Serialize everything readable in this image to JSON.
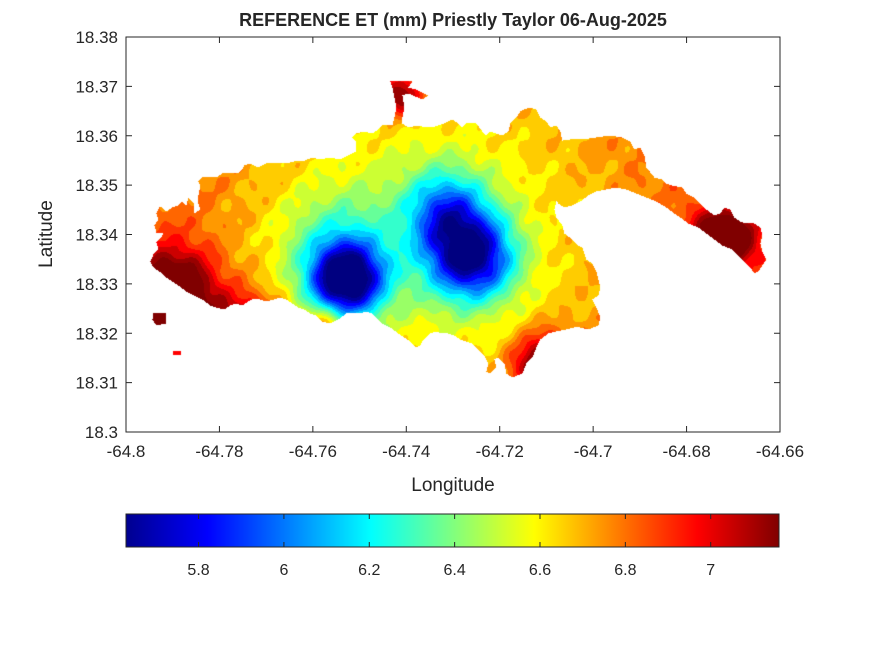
{
  "chart_data": {
    "type": "heatmap",
    "title": "REFERENCE ET (mm) Priestly Taylor 06-Aug-2025",
    "xlabel": "Longitude",
    "ylabel": "Latitude",
    "xlim": [
      -64.8,
      -64.66
    ],
    "ylim": [
      18.3,
      18.38
    ],
    "xticks": [
      "-64.8",
      "-64.78",
      "-64.76",
      "-64.74",
      "-64.72",
      "-64.7",
      "-64.68",
      "-64.66"
    ],
    "yticks": [
      "18.3",
      "18.31",
      "18.32",
      "18.33",
      "18.34",
      "18.35",
      "18.36",
      "18.37",
      "18.38"
    ],
    "colorbar": {
      "colormap": "jet",
      "range": [
        5.63,
        7.16
      ],
      "ticks": [
        "5.8",
        "6",
        "6.2",
        "6.4",
        "6.6",
        "6.8",
        "7"
      ]
    },
    "grid": false,
    "field": {
      "description_values": "ET in mm at sample locations (lon, lat, value)",
      "minima": [
        {
          "lon": -64.7545,
          "lat": 18.3302,
          "value": 5.66
        },
        {
          "lon": -64.7265,
          "lat": 18.3355,
          "value": 5.7
        },
        {
          "lon": -64.7365,
          "lat": 18.3465,
          "value": 5.95
        }
      ],
      "maxima": [
        {
          "lon": -64.789,
          "lat": 18.326,
          "value": 7.12
        },
        {
          "lon": -64.7115,
          "lat": 18.3115,
          "value": 7.05
        },
        {
          "lon": -64.6685,
          "lat": 18.339,
          "value": 6.95
        },
        {
          "lon": -64.749,
          "lat": 18.3685,
          "value": 6.9
        }
      ]
    }
  }
}
